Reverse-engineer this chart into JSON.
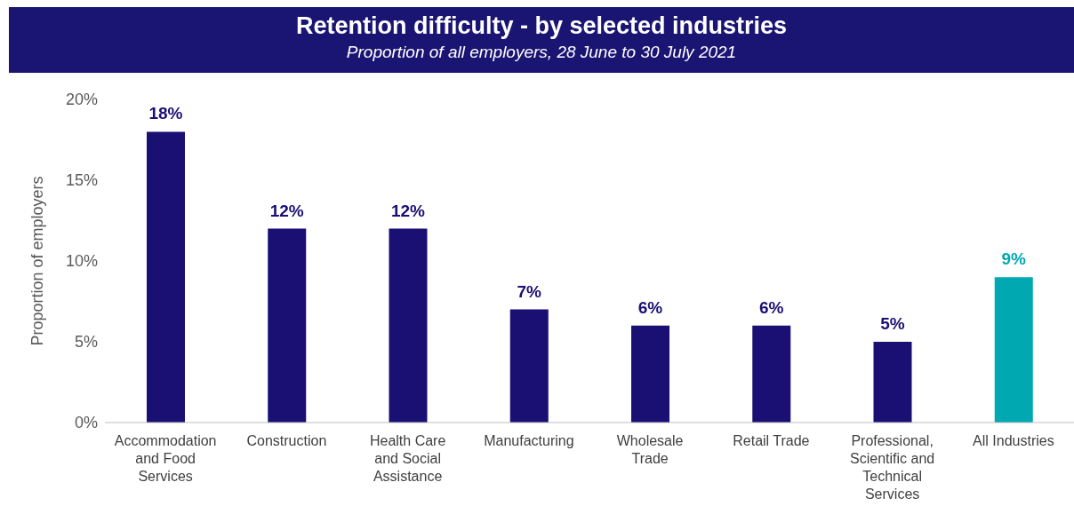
{
  "chart_data": {
    "type": "bar",
    "title": "Retention difficulty - by selected industries",
    "subtitle": "Proportion of all employers, 28 June to 30 July 2021",
    "ylabel": "Proportion of employers",
    "categories": [
      "Accommodation and Food Services",
      "Construction",
      "Health Care and Social Assistance",
      "Manufacturing",
      "Wholesale Trade",
      "Retail Trade",
      "Professional, Scientific and Technical Services",
      "All Industries"
    ],
    "values": [
      18,
      12,
      12,
      7,
      6,
      6,
      5,
      9
    ],
    "colors": [
      "#1a0f73",
      "#1a0f73",
      "#1a0f73",
      "#1a0f73",
      "#1a0f73",
      "#1a0f73",
      "#1a0f73",
      "#00a8b2"
    ],
    "value_labels": [
      "18%",
      "12%",
      "12%",
      "7%",
      "6%",
      "6%",
      "5%",
      "9%"
    ],
    "ylim": [
      0,
      20
    ],
    "yticks": [
      {
        "value": 0,
        "label": "0%"
      },
      {
        "value": 5,
        "label": "5%"
      },
      {
        "value": 10,
        "label": "10%"
      },
      {
        "value": 15,
        "label": "15%"
      },
      {
        "value": 20,
        "label": "20%"
      }
    ],
    "grid": false,
    "legend": false
  }
}
